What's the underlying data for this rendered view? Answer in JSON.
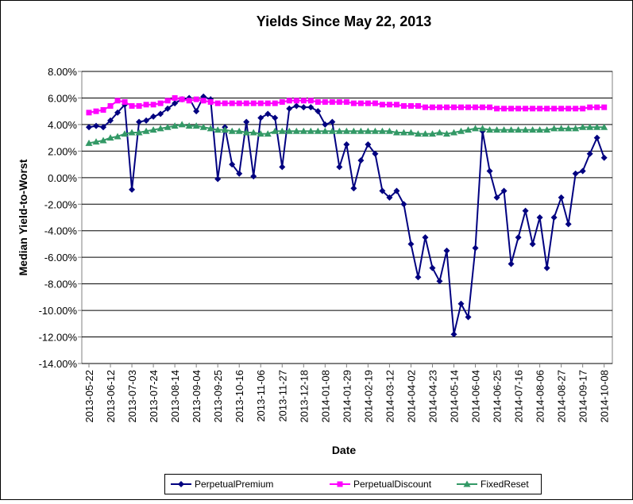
{
  "chart_data": {
    "type": "line",
    "title": "Yields Since May 22, 2013",
    "x_label": "Date",
    "y_label": "Median Yield-to-Worst",
    "x": [
      "2013-05-22",
      "2013-05-29",
      "2013-06-05",
      "2013-06-12",
      "2013-06-19",
      "2013-06-26",
      "2013-07-03",
      "2013-07-10",
      "2013-07-17",
      "2013-07-24",
      "2013-07-31",
      "2013-08-07",
      "2013-08-14",
      "2013-08-21",
      "2013-08-28",
      "2013-09-04",
      "2013-09-11",
      "2013-09-18",
      "2013-09-25",
      "2013-10-02",
      "2013-10-09",
      "2013-10-16",
      "2013-10-23",
      "2013-10-30",
      "2013-11-06",
      "2013-11-13",
      "2013-11-20",
      "2013-11-27",
      "2013-12-04",
      "2013-12-11",
      "2013-12-18",
      "2013-12-25",
      "2014-01-01",
      "2014-01-08",
      "2014-01-15",
      "2014-01-22",
      "2014-01-29",
      "2014-02-05",
      "2014-02-12",
      "2014-02-19",
      "2014-02-26",
      "2014-03-05",
      "2014-03-12",
      "2014-03-19",
      "2014-03-26",
      "2014-04-02",
      "2014-04-09",
      "2014-04-16",
      "2014-04-23",
      "2014-04-30",
      "2014-05-07",
      "2014-05-14",
      "2014-05-21",
      "2014-05-28",
      "2014-06-04",
      "2014-06-11",
      "2014-06-18",
      "2014-06-25",
      "2014-07-02",
      "2014-07-09",
      "2014-07-16",
      "2014-07-23",
      "2014-07-30",
      "2014-08-06",
      "2014-08-13",
      "2014-08-20",
      "2014-08-27",
      "2014-09-03",
      "2014-09-10",
      "2014-09-17",
      "2014-09-24",
      "2014-10-01",
      "2014-10-08"
    ],
    "series": [
      {
        "name": "PerpetualPremium",
        "color": "#000080",
        "marker": "diamond",
        "values": [
          3.8,
          3.9,
          3.8,
          4.3,
          4.9,
          5.5,
          -0.9,
          4.2,
          4.3,
          4.6,
          4.8,
          5.2,
          5.6,
          5.9,
          6.0,
          5.0,
          6.1,
          5.9,
          -0.1,
          3.8,
          1.0,
          0.3,
          4.2,
          0.1,
          4.5,
          4.8,
          4.5,
          0.8,
          5.2,
          5.4,
          5.3,
          5.3,
          5.0,
          4.0,
          4.2,
          0.8,
          2.5,
          -0.8,
          1.3,
          2.5,
          1.8,
          -1.0,
          -1.5,
          -1.0,
          -2.0,
          -5.0,
          -7.5,
          -4.5,
          -6.8,
          -7.8,
          -5.5,
          -11.8,
          -9.5,
          -10.5,
          -5.3,
          3.5,
          0.5,
          -1.5,
          -1.0,
          -6.5,
          -4.5,
          -2.5,
          -5.0,
          -3.0,
          -6.8,
          -3.0,
          -1.5,
          -3.5,
          0.3,
          0.5,
          1.8,
          3.0,
          1.5
        ]
      },
      {
        "name": "PerpetualDiscount",
        "color": "#ff00ff",
        "marker": "square",
        "values": [
          4.9,
          5.0,
          5.1,
          5.4,
          5.8,
          5.7,
          5.4,
          5.4,
          5.5,
          5.5,
          5.6,
          5.8,
          6.0,
          5.9,
          5.8,
          5.9,
          5.8,
          5.7,
          5.6,
          5.6,
          5.6,
          5.6,
          5.6,
          5.6,
          5.6,
          5.6,
          5.6,
          5.7,
          5.8,
          5.8,
          5.8,
          5.8,
          5.7,
          5.7,
          5.7,
          5.7,
          5.7,
          5.6,
          5.6,
          5.6,
          5.6,
          5.5,
          5.5,
          5.5,
          5.4,
          5.4,
          5.4,
          5.3,
          5.3,
          5.3,
          5.3,
          5.3,
          5.3,
          5.3,
          5.3,
          5.3,
          5.3,
          5.2,
          5.2,
          5.2,
          5.2,
          5.2,
          5.2,
          5.2,
          5.2,
          5.2,
          5.2,
          5.2,
          5.2,
          5.2,
          5.3,
          5.3,
          5.3
        ]
      },
      {
        "name": "FixedReset",
        "color": "#339966",
        "marker": "triangle",
        "values": [
          2.6,
          2.7,
          2.8,
          3.0,
          3.1,
          3.3,
          3.4,
          3.4,
          3.5,
          3.6,
          3.7,
          3.8,
          3.9,
          4.0,
          3.9,
          3.9,
          3.8,
          3.7,
          3.6,
          3.6,
          3.5,
          3.5,
          3.4,
          3.4,
          3.3,
          3.3,
          3.5,
          3.5,
          3.5,
          3.5,
          3.5,
          3.5,
          3.5,
          3.5,
          3.5,
          3.5,
          3.5,
          3.5,
          3.5,
          3.5,
          3.5,
          3.5,
          3.5,
          3.4,
          3.4,
          3.4,
          3.3,
          3.3,
          3.3,
          3.4,
          3.3,
          3.4,
          3.5,
          3.6,
          3.7,
          3.7,
          3.6,
          3.6,
          3.6,
          3.6,
          3.6,
          3.6,
          3.6,
          3.6,
          3.6,
          3.7,
          3.7,
          3.7,
          3.7,
          3.8,
          3.8,
          3.8,
          3.8
        ]
      }
    ],
    "xlim": [
      "2013-05-15",
      "2014-10-16"
    ],
    "xticks": [
      "2013-05-22",
      "2013-06-12",
      "2013-07-03",
      "2013-07-24",
      "2013-08-14",
      "2013-09-04",
      "2013-09-25",
      "2013-10-16",
      "2013-11-06",
      "2013-11-27",
      "2013-12-18",
      "2014-01-08",
      "2014-01-29",
      "2014-02-19",
      "2014-03-12",
      "2014-04-02",
      "2014-04-23",
      "2014-05-14",
      "2014-06-04",
      "2014-06-25",
      "2014-07-16",
      "2014-08-06",
      "2014-08-27",
      "2014-09-17",
      "2014-10-08"
    ],
    "ylim": [
      -14,
      8
    ],
    "yticks": [
      {
        "value": -14,
        "label": "-14.00%"
      },
      {
        "value": -12,
        "label": "-12.00%"
      },
      {
        "value": -10,
        "label": "-10.00%"
      },
      {
        "value": -8,
        "label": "-8.00%"
      },
      {
        "value": -6,
        "label": "-6.00%"
      },
      {
        "value": -4,
        "label": "-4.00%"
      },
      {
        "value": -2,
        "label": "-2.00%"
      },
      {
        "value": 0,
        "label": "0.00%"
      },
      {
        "value": 2,
        "label": "2.00%"
      },
      {
        "value": 4,
        "label": "4.00%"
      },
      {
        "value": 6,
        "label": "6.00%"
      },
      {
        "value": 8,
        "label": "8.00%"
      }
    ],
    "grid": true,
    "legend": "bottom"
  }
}
